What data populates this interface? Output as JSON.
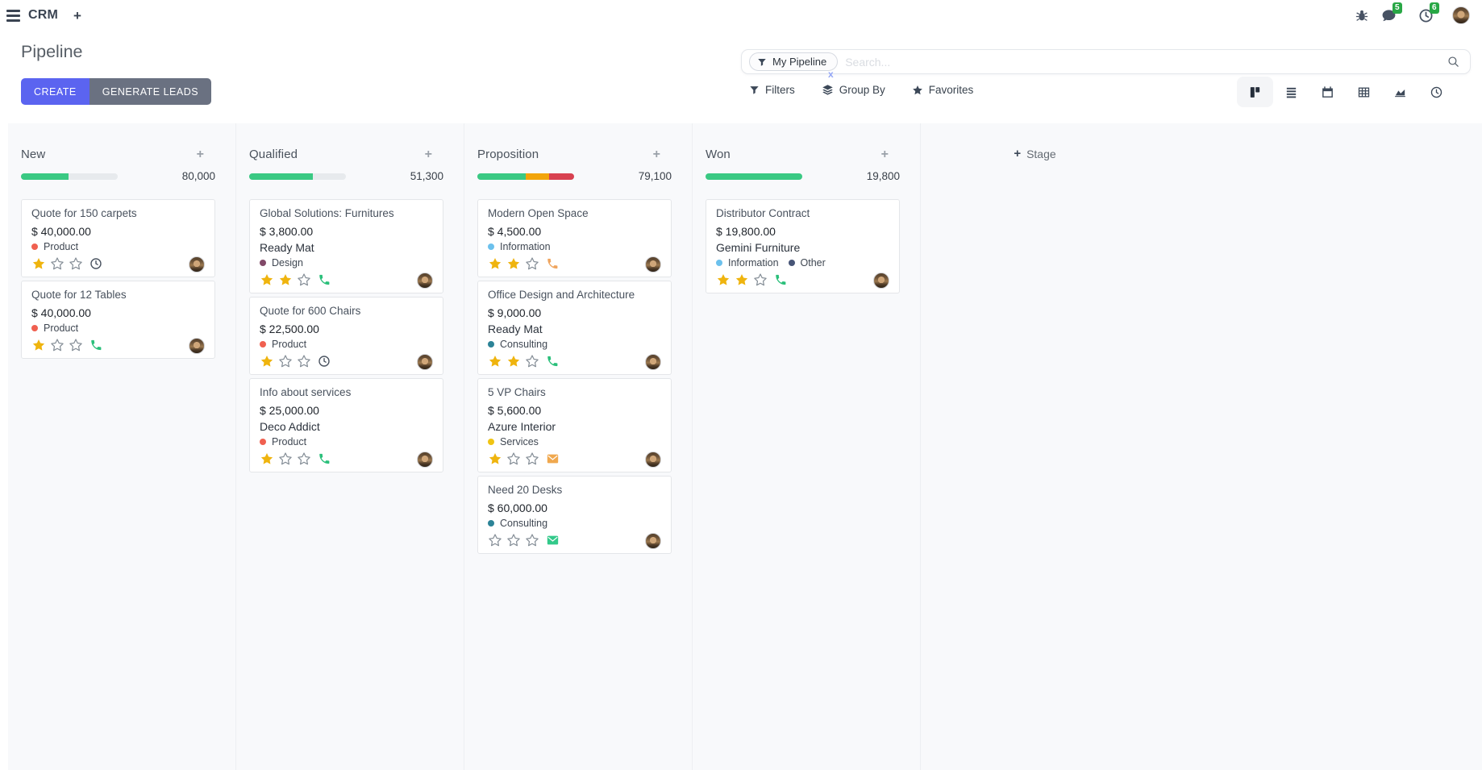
{
  "nav": {
    "app": "CRM",
    "chat_badge": "5",
    "activity_badge": "6"
  },
  "control": {
    "title": "Pipeline",
    "create_label": "CREATE",
    "generate_label": "GENERATE LEADS",
    "facet": "My Pipeline",
    "facet_remove": "x",
    "search_placeholder": "Search...",
    "filters_label": "Filters",
    "group_by_label": "Group By",
    "favorites_label": "Favorites"
  },
  "board": {
    "add_stage_label": "Stage",
    "colors": {
      "green": "#3ac983",
      "yellow": "#f2a50a",
      "red": "#d84150",
      "track": "#e7eaed",
      "star_on": "#efb40e",
      "star_off": "#848d96"
    },
    "columns": [
      {
        "name": "New",
        "count": "80,000",
        "segments": [
          {
            "color": "#3ac983",
            "pct": 49
          }
        ],
        "cards": [
          {
            "title": "Quote for 150 carpets",
            "amount": "$ 40,000.00",
            "tags": [
              {
                "label": "Product",
                "color": "#F06050"
              }
            ],
            "stars": 1,
            "activity": {
              "icon": "clock",
              "color": "#4a5360"
            }
          },
          {
            "title": "Quote for 12 Tables",
            "amount": "$ 40,000.00",
            "tags": [
              {
                "label": "Product",
                "color": "#F06050"
              }
            ],
            "stars": 1,
            "activity": {
              "icon": "phone",
              "color": "#2abf7a"
            }
          }
        ]
      },
      {
        "name": "Qualified",
        "count": "51,300",
        "segments": [
          {
            "color": "#3ac983",
            "pct": 66
          }
        ],
        "cards": [
          {
            "title": "Global Solutions: Furnitures",
            "amount": "$ 3,800.00",
            "partner": "Ready Mat",
            "tags": [
              {
                "label": "Design",
                "color": "#814968"
              }
            ],
            "stars": 2,
            "activity": {
              "icon": "phone",
              "color": "#2abf7a"
            }
          },
          {
            "title": "Quote for 600 Chairs",
            "amount": "$ 22,500.00",
            "tags": [
              {
                "label": "Product",
                "color": "#F06050"
              }
            ],
            "stars": 1,
            "activity": {
              "icon": "clock",
              "color": "#4a5360"
            }
          },
          {
            "title": "Info about services",
            "amount": "$ 25,000.00",
            "partner": "Deco Addict",
            "tags": [
              {
                "label": "Product",
                "color": "#F06050"
              }
            ],
            "stars": 1,
            "activity": {
              "icon": "phone",
              "color": "#2abf7a"
            }
          }
        ]
      },
      {
        "name": "Proposition",
        "count": "79,100",
        "segments": [
          {
            "color": "#3ac983",
            "pct": 50
          },
          {
            "color": "#f2a50a",
            "pct": 24
          },
          {
            "color": "#d84150",
            "pct": 26
          }
        ],
        "cards": [
          {
            "title": "Modern Open Space",
            "amount": "$ 4,500.00",
            "tags": [
              {
                "label": "Information",
                "color": "#6CC1ED"
              }
            ],
            "stars": 2,
            "activity": {
              "icon": "phone",
              "color": "#efa55f"
            }
          },
          {
            "title": "Office Design and Architecture",
            "amount": "$ 9,000.00",
            "partner": "Ready Mat",
            "tags": [
              {
                "label": "Consulting",
                "color": "#2C8397"
              }
            ],
            "stars": 2,
            "activity": {
              "icon": "phone",
              "color": "#2abf7a"
            }
          },
          {
            "title": "5 VP Chairs",
            "amount": "$ 5,600.00",
            "partner": "Azure Interior",
            "tags": [
              {
                "label": "Services",
                "color": "#F0C413"
              }
            ],
            "stars": 1,
            "activity": {
              "icon": "envelope",
              "color": "#f0a84e"
            }
          },
          {
            "title": "Need 20 Desks",
            "amount": "$ 60,000.00",
            "tags": [
              {
                "label": "Consulting",
                "color": "#2C8397"
              }
            ],
            "stars": 0,
            "activity": {
              "icon": "envelope",
              "color": "#33c98a"
            }
          }
        ]
      },
      {
        "name": "Won",
        "count": "19,800",
        "segments": [
          {
            "color": "#3ac983",
            "pct": 100
          }
        ],
        "cards": [
          {
            "title": "Distributor Contract",
            "amount": "$ 19,800.00",
            "partner": "Gemini Furniture",
            "tags": [
              {
                "label": "Information",
                "color": "#6CC1ED"
              },
              {
                "label": "Other",
                "color": "#475577"
              }
            ],
            "stars": 2,
            "activity": {
              "icon": "phone",
              "color": "#2abf7a"
            }
          }
        ]
      }
    ]
  }
}
